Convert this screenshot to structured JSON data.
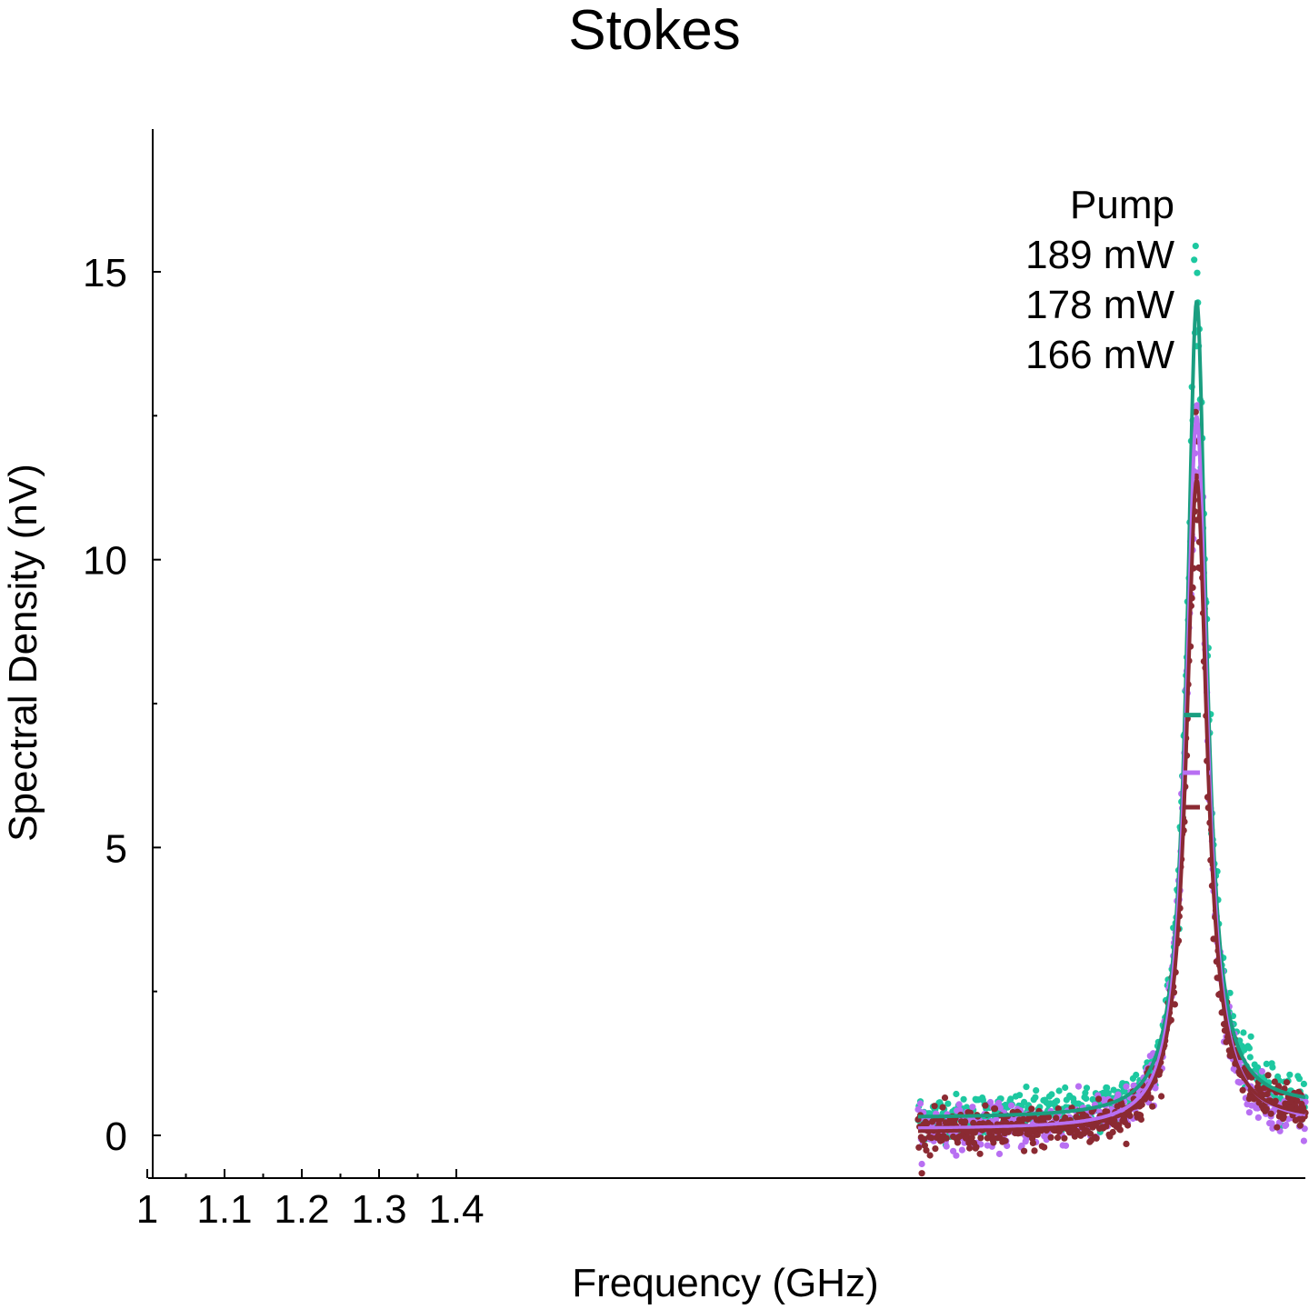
{
  "chart_data": {
    "type": "scatter",
    "title": "Stokes",
    "xlabel": "Frequency (GHz)",
    "ylabel": "Spectral Density (nV)",
    "xlim": [
      1.0,
      4.39
    ],
    "ylim": [
      -0.72,
      17.5
    ],
    "x_ticks": [
      {
        "value": 1.0,
        "label": "1"
      },
      {
        "value": 1.1,
        "label": "1.1"
      },
      {
        "value": 1.2,
        "label": "1.2"
      },
      {
        "value": 1.3,
        "label": "1.3"
      },
      {
        "value": 1.4,
        "label": "1.4"
      }
    ],
    "y_ticks": [
      {
        "value": 0,
        "label": "0"
      },
      {
        "value": 5,
        "label": "5"
      },
      {
        "value": 10,
        "label": "10"
      },
      {
        "value": 15,
        "label": "15"
      }
    ],
    "y_minor_ticks": [
      2.5,
      7.5,
      12.5
    ],
    "grid": false,
    "legend": {
      "title": "Pump",
      "placement": "top-right"
    },
    "series": [
      {
        "name": "189 mW",
        "color": "#1dc8a0",
        "fit_color": "#1a9e80",
        "center": 4.0,
        "peak": 14.5,
        "hwhm": 0.042,
        "half_max": 7.3,
        "baseline_left": 0.3,
        "baseline_right": 0.5
      },
      {
        "name": "178 mW",
        "color": "#b86ff2",
        "fit_color": "#b86ff2",
        "center": 4.0,
        "peak": 12.5,
        "hwhm": 0.045,
        "half_max": 6.3,
        "baseline_left": 0.1,
        "baseline_right": 0.2
      },
      {
        "name": "166 mW",
        "color": "#8b2a32",
        "fit_color": "#8b2a32",
        "center": 4.0,
        "peak": 11.4,
        "hwhm": 0.045,
        "half_max": 5.7,
        "baseline_left": 0.05,
        "baseline_right": 0.25
      }
    ],
    "x_range_data": [
      3.0,
      4.39
    ]
  }
}
